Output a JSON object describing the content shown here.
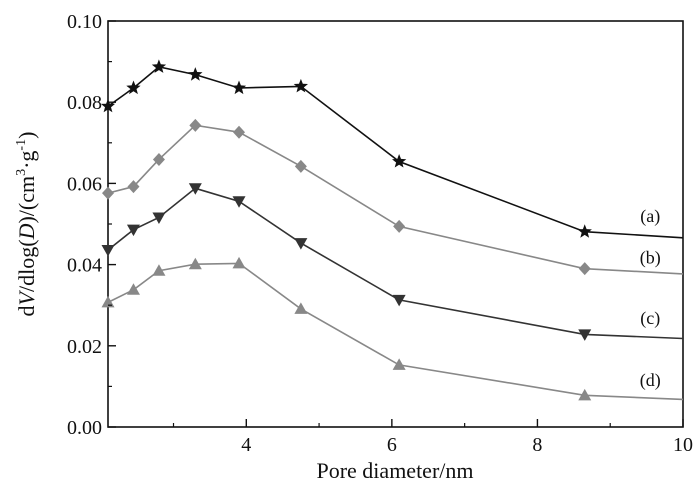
{
  "chart_data": {
    "type": "line",
    "xlabel": "Pore diameter/nm",
    "ylabel": {
      "prefix": "d",
      "italic_1": "V",
      "mid_1": "/dlog(",
      "italic_2": "D",
      "mid_2": ")/(cm",
      "sup_1": "3",
      "mid_3": "·g",
      "sup_2": "-1",
      "suffix": ")"
    },
    "xlim": [
      2.1,
      10
    ],
    "ylim": [
      0,
      0.1
    ],
    "x_ticks": [
      4,
      6,
      8,
      10
    ],
    "x_tick_labels": [
      "4",
      "6",
      "8",
      "10"
    ],
    "y_ticks": [
      0.0,
      0.02,
      0.04,
      0.06,
      0.08,
      0.1
    ],
    "y_tick_labels": [
      "0.00",
      "0.02",
      "0.04",
      "0.06",
      "0.08",
      "0.10"
    ],
    "grid": false,
    "series": [
      {
        "label": "(a)",
        "color": "#111111",
        "marker": "star",
        "x": [
          2.1,
          2.45,
          2.8,
          3.3,
          3.9,
          4.75,
          6.1,
          8.65,
          10.0
        ],
        "y": [
          0.079,
          0.0835,
          0.0887,
          0.0868,
          0.0835,
          0.0839,
          0.0654,
          0.0481,
          0.0466
        ],
        "markers_on": [
          true,
          true,
          true,
          true,
          true,
          true,
          true,
          true,
          false
        ]
      },
      {
        "label": "(b)",
        "color": "#888888",
        "marker": "diamond",
        "x": [
          2.1,
          2.45,
          2.8,
          3.3,
          3.9,
          4.75,
          6.1,
          8.65,
          10.0
        ],
        "y": [
          0.0576,
          0.0592,
          0.0659,
          0.0743,
          0.0726,
          0.0642,
          0.0494,
          0.039,
          0.0377
        ],
        "markers_on": [
          true,
          true,
          true,
          true,
          true,
          true,
          true,
          true,
          false
        ]
      },
      {
        "label": "(c)",
        "color": "#333333",
        "marker": "triangle-down",
        "x": [
          2.1,
          2.45,
          2.8,
          3.3,
          3.9,
          4.75,
          6.1,
          8.65,
          10.0
        ],
        "y": [
          0.0436,
          0.0486,
          0.0516,
          0.0588,
          0.0556,
          0.0453,
          0.0313,
          0.0228,
          0.0218
        ],
        "markers_on": [
          true,
          true,
          true,
          true,
          true,
          true,
          true,
          true,
          false
        ]
      },
      {
        "label": "(d)",
        "color": "#888888",
        "marker": "triangle-up",
        "x": [
          2.1,
          2.45,
          2.8,
          3.3,
          3.9,
          4.75,
          6.1,
          8.65,
          10.0
        ],
        "y": [
          0.0307,
          0.0338,
          0.0385,
          0.0401,
          0.0403,
          0.0291,
          0.0153,
          0.0078,
          0.0068
        ],
        "markers_on": [
          true,
          true,
          true,
          true,
          true,
          true,
          true,
          true,
          false
        ]
      }
    ],
    "series_label_positions": [
      {
        "x": 9.55,
        "y": 0.052
      },
      {
        "x": 9.55,
        "y": 0.0418
      },
      {
        "x": 9.55,
        "y": 0.0268
      },
      {
        "x": 9.55,
        "y": 0.0116
      }
    ]
  }
}
